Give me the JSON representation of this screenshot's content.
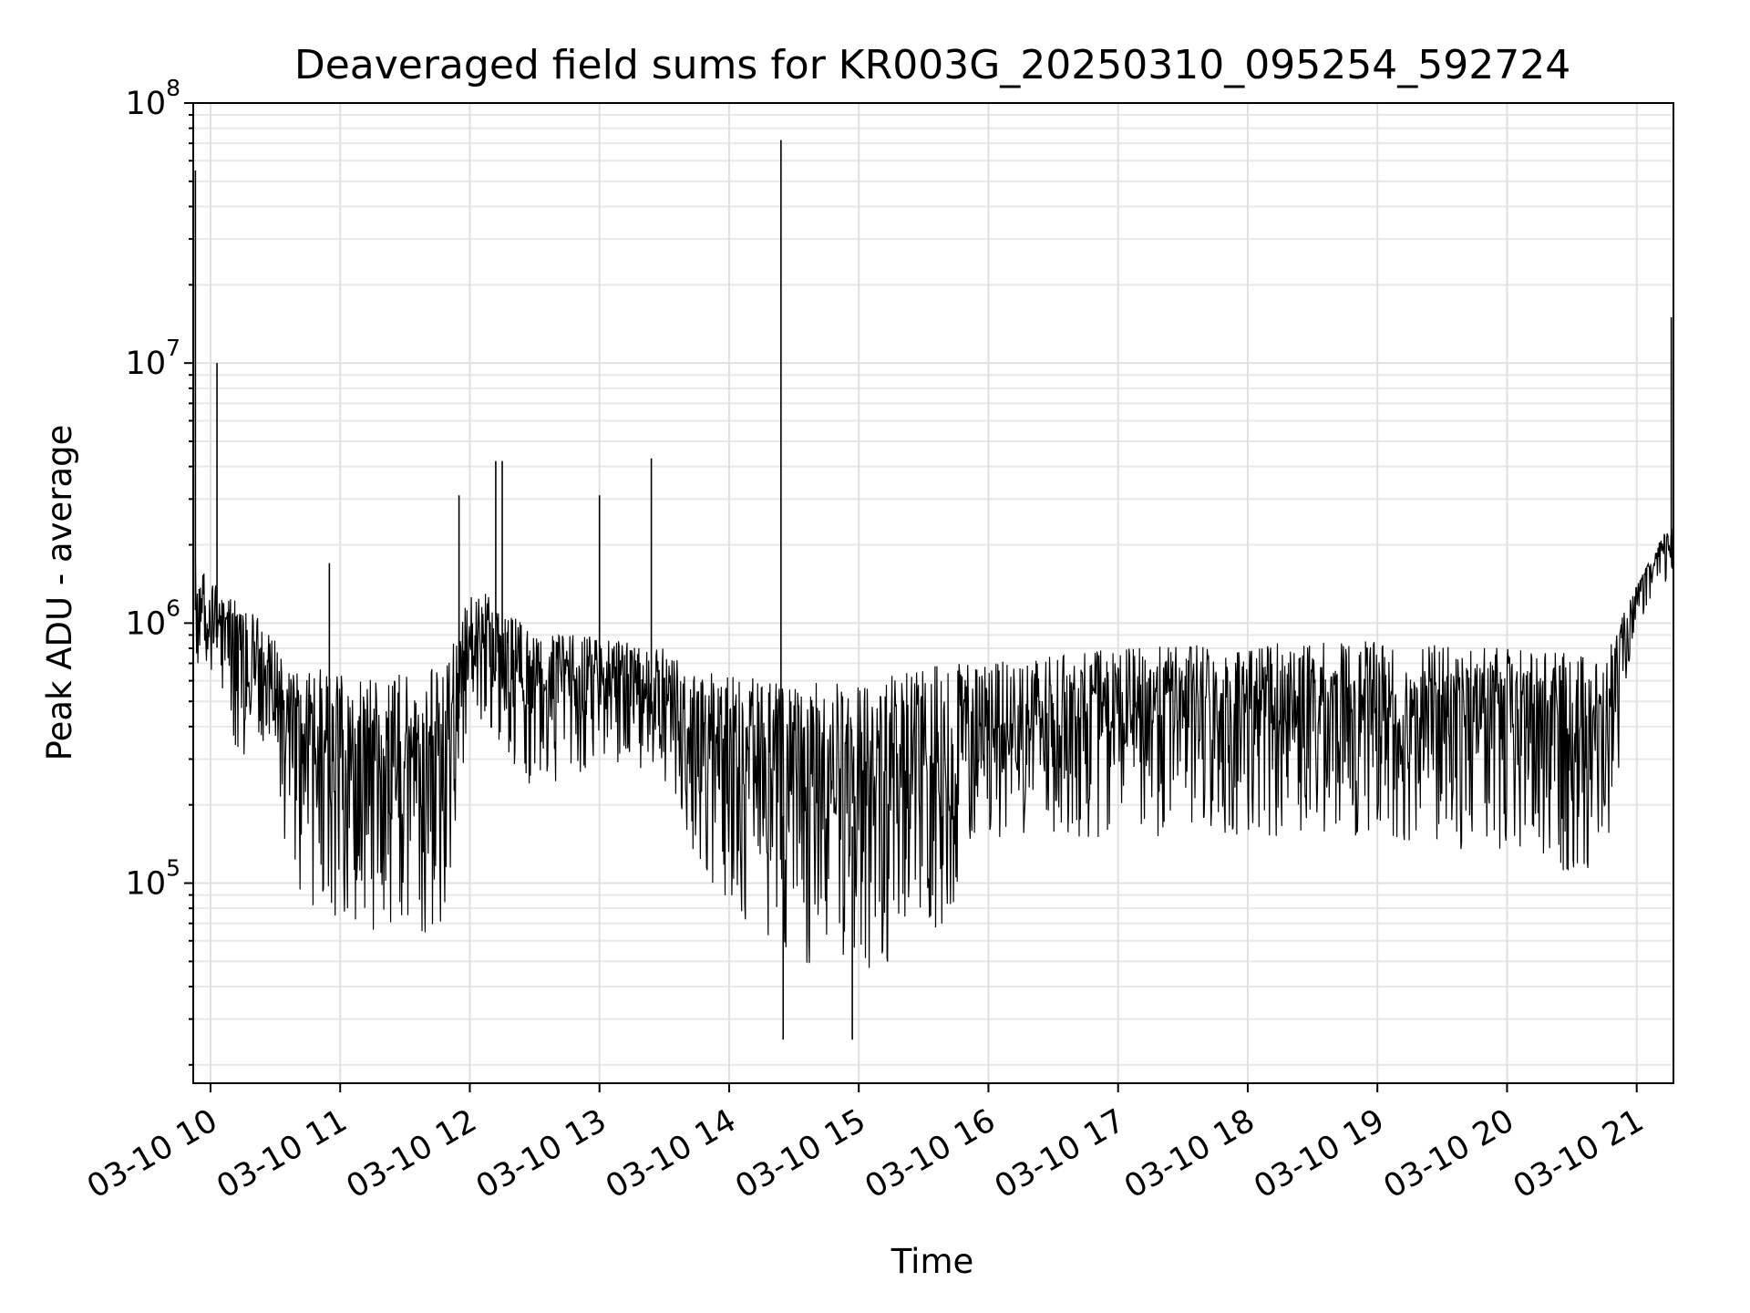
{
  "chart_data": {
    "type": "line",
    "title": "Deaveraged field sums for KR003G_20250310_095254_592724",
    "xlabel": "Time",
    "ylabel": "Peak ADU - average",
    "yscale": "log",
    "ylim": [
      17000,
      100000000
    ],
    "xlim": [
      "2025-03-10 09:52",
      "2025-03-10 21:17"
    ],
    "grid": true,
    "line_color": "#000000",
    "x_ticks": [
      {
        "value": "2025-03-10 10:00",
        "label": "03-10 10"
      },
      {
        "value": "2025-03-10 11:00",
        "label": "03-10 11"
      },
      {
        "value": "2025-03-10 12:00",
        "label": "03-10 12"
      },
      {
        "value": "2025-03-10 13:00",
        "label": "03-10 13"
      },
      {
        "value": "2025-03-10 14:00",
        "label": "03-10 14"
      },
      {
        "value": "2025-03-10 15:00",
        "label": "03-10 15"
      },
      {
        "value": "2025-03-10 16:00",
        "label": "03-10 16"
      },
      {
        "value": "2025-03-10 17:00",
        "label": "03-10 17"
      },
      {
        "value": "2025-03-10 18:00",
        "label": "03-10 18"
      },
      {
        "value": "2025-03-10 19:00",
        "label": "03-10 19"
      },
      {
        "value": "2025-03-10 20:00",
        "label": "03-10 20"
      },
      {
        "value": "2025-03-10 21:00",
        "label": "03-10 21"
      }
    ],
    "y_ticks": [
      {
        "value": 100000,
        "base": "10",
        "exp": "5"
      },
      {
        "value": 1000000,
        "base": "10",
        "exp": "6"
      },
      {
        "value": 10000000,
        "base": "10",
        "exp": "7"
      },
      {
        "value": 100000000,
        "base": "10",
        "exp": "8"
      }
    ],
    "envelope": {
      "x": [
        "2025-03-10 09:53",
        "2025-03-10 10:00",
        "2025-03-10 10:15",
        "2025-03-10 10:30",
        "2025-03-10 10:40",
        "2025-03-10 11:00",
        "2025-03-10 11:30",
        "2025-03-10 11:50",
        "2025-03-10 12:00",
        "2025-03-10 12:30",
        "2025-03-10 13:00",
        "2025-03-10 13:30",
        "2025-03-10 13:45",
        "2025-03-10 14:00",
        "2025-03-10 14:30",
        "2025-03-10 15:00",
        "2025-03-10 15:30",
        "2025-03-10 16:00",
        "2025-03-10 17:00",
        "2025-03-10 18:00",
        "2025-03-10 19:00",
        "2025-03-10 20:00",
        "2025-03-10 20:45",
        "2025-03-10 21:00",
        "2025-03-10 21:17"
      ],
      "upper": [
        1800000,
        1500000,
        1200000,
        900000,
        700000,
        650000,
        650000,
        700000,
        1500000,
        900000,
        900000,
        800000,
        650000,
        650000,
        600000,
        600000,
        700000,
        700000,
        800000,
        850000,
        850000,
        800000,
        750000,
        1400000,
        2600000
      ],
      "lower": [
        700000,
        500000,
        300000,
        200000,
        90000,
        70000,
        60000,
        65000,
        500000,
        200000,
        300000,
        250000,
        120000,
        80000,
        50000,
        45000,
        50000,
        150000,
        150000,
        150000,
        150000,
        120000,
        100000,
        1000000,
        1500000
      ]
    },
    "spikes": [
      {
        "x": "2025-03-10 09:53",
        "y": 55000000
      },
      {
        "x": "2025-03-10 10:03",
        "y": 10000000
      },
      {
        "x": "2025-03-10 10:55",
        "y": 1700000
      },
      {
        "x": "2025-03-10 11:55",
        "y": 3100000
      },
      {
        "x": "2025-03-10 12:12",
        "y": 4200000
      },
      {
        "x": "2025-03-10 12:15",
        "y": 4200000
      },
      {
        "x": "2025-03-10 13:00",
        "y": 3100000
      },
      {
        "x": "2025-03-10 13:24",
        "y": 4300000
      },
      {
        "x": "2025-03-10 14:24",
        "y": 72000000
      },
      {
        "x": "2025-03-10 14:25",
        "y": 25000
      },
      {
        "x": "2025-03-10 14:57",
        "y": 25000
      },
      {
        "x": "2025-03-10 21:16",
        "y": 15000000
      }
    ]
  }
}
